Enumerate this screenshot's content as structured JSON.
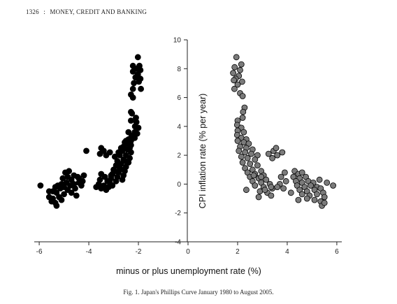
{
  "header": {
    "page_number": "1326",
    "separator": ":",
    "journal_title": "MONEY, CREDIT AND BANKING"
  },
  "caption": {
    "label": "Fig. 1.",
    "text": "Japan's Phillips Curve January 1980 to August 2005."
  },
  "chart_data": {
    "type": "scatter",
    "xlabel": "minus or plus unemployment rate (%)",
    "ylabel": "CPI inflation rate (% per year)",
    "xlim": [
      -6.2,
      6.2
    ],
    "ylim": [
      -4,
      10
    ],
    "x_ticks": [
      -6,
      -4,
      -2,
      0,
      2,
      4,
      6
    ],
    "x_tick_labels": [
      "-6",
      "-4",
      "-2",
      "0",
      "2",
      "4",
      "6"
    ],
    "y_ticks": [
      -4,
      -2,
      0,
      2,
      4,
      6,
      8,
      10
    ],
    "y_tick_labels": [
      "-4",
      "-2",
      "0",
      "2",
      "4",
      "6",
      "8",
      "10"
    ],
    "grid": false,
    "legend": "none",
    "series": [
      {
        "marker_color": "#000000",
        "points": [
          [
            -2.02,
            8.8
          ],
          [
            -1.96,
            8.2
          ],
          [
            -2.08,
            8.0
          ],
          [
            -1.92,
            7.9
          ],
          [
            -2.02,
            7.6
          ],
          [
            -1.92,
            7.3
          ],
          [
            -1.98,
            7.1
          ],
          [
            -2.22,
            8.2
          ],
          [
            -2.22,
            7.8
          ],
          [
            -2.12,
            7.4
          ],
          [
            -2.18,
            7.0
          ],
          [
            -2.22,
            6.6
          ],
          [
            -1.9,
            6.6
          ],
          [
            -2.3,
            6.2
          ],
          [
            -2.22,
            6.0
          ],
          [
            -2.3,
            5.0
          ],
          [
            -2.26,
            4.9
          ],
          [
            -2.1,
            4.6
          ],
          [
            -2.3,
            4.4
          ],
          [
            -2.08,
            4.3
          ],
          [
            -2.14,
            4.0
          ],
          [
            -2.0,
            3.9
          ],
          [
            -2.15,
            3.6
          ],
          [
            -2.05,
            3.5
          ],
          [
            -2.28,
            3.3
          ],
          [
            -2.15,
            3.2
          ],
          [
            -2.4,
            3.1
          ],
          [
            -2.5,
            3.0
          ],
          [
            -2.3,
            3.0
          ],
          [
            -2.45,
            2.8
          ],
          [
            -2.6,
            2.6
          ],
          [
            -2.3,
            2.7
          ],
          [
            -2.45,
            2.4
          ],
          [
            -2.65,
            2.3
          ],
          [
            -2.3,
            2.2
          ],
          [
            -2.5,
            2.0
          ],
          [
            -2.75,
            2.0
          ],
          [
            -2.35,
            1.8
          ],
          [
            -2.6,
            1.7
          ],
          [
            -2.85,
            1.6
          ],
          [
            -2.4,
            1.5
          ],
          [
            -2.7,
            1.4
          ],
          [
            -2.9,
            1.3
          ],
          [
            -2.5,
            1.2
          ],
          [
            -2.75,
            1.1
          ],
          [
            -3.0,
            1.0
          ],
          [
            -2.55,
            0.9
          ],
          [
            -2.8,
            0.8
          ],
          [
            -3.05,
            0.7
          ],
          [
            -2.6,
            0.6
          ],
          [
            -2.85,
            0.5
          ],
          [
            -3.1,
            0.4
          ],
          [
            -2.65,
            0.3
          ],
          [
            -2.9,
            0.2
          ],
          [
            -3.15,
            0.1
          ],
          [
            -2.7,
            2.5
          ],
          [
            -2.55,
            2.9
          ],
          [
            -2.8,
            2.2
          ],
          [
            -2.95,
            1.9
          ],
          [
            -2.55,
            1.6
          ],
          [
            -2.35,
            2.5
          ],
          [
            -2.2,
            3.4
          ],
          [
            -2.4,
            3.6
          ],
          [
            -2.35,
            2.9
          ],
          [
            -2.6,
            1.0
          ],
          [
            -2.8,
            1.25
          ],
          [
            -2.95,
            0.9
          ],
          [
            -3.5,
            2.5
          ],
          [
            -3.4,
            2.3
          ],
          [
            -3.55,
            2.1
          ],
          [
            -3.3,
            2.0
          ],
          [
            -3.15,
            2.2
          ],
          [
            -4.1,
            2.3
          ],
          [
            -3.5,
            0.7
          ],
          [
            -3.35,
            0.5
          ],
          [
            -3.55,
            0.3
          ],
          [
            -3.25,
            0.2
          ],
          [
            -3.6,
            0.0
          ],
          [
            -3.4,
            -0.1
          ],
          [
            -3.2,
            -0.2
          ],
          [
            -3.7,
            -0.2
          ],
          [
            -3.3,
            -0.4
          ],
          [
            -3.5,
            -0.3
          ],
          [
            -3.05,
            -0.1
          ],
          [
            -3.1,
            0.6
          ],
          [
            -4.8,
            0.9
          ],
          [
            -4.95,
            0.8
          ],
          [
            -4.6,
            0.6
          ],
          [
            -4.85,
            0.5
          ],
          [
            -5.05,
            0.4
          ],
          [
            -4.7,
            0.3
          ],
          [
            -4.4,
            0.4
          ],
          [
            -4.2,
            0.6
          ],
          [
            -4.9,
            0.1
          ],
          [
            -5.1,
            0.0
          ],
          [
            -4.6,
            0.0
          ],
          [
            -4.4,
            0.1
          ],
          [
            -4.25,
            0.2
          ],
          [
            -4.75,
            -0.1
          ],
          [
            -5.0,
            -0.2
          ],
          [
            -5.25,
            -0.1
          ],
          [
            -4.55,
            -0.3
          ],
          [
            -4.85,
            -0.4
          ],
          [
            -5.15,
            -0.3
          ],
          [
            -5.35,
            -0.2
          ],
          [
            -4.7,
            -0.6
          ],
          [
            -5.0,
            -0.7
          ],
          [
            -5.3,
            -0.6
          ],
          [
            -5.45,
            -0.5
          ],
          [
            -5.2,
            -0.9
          ],
          [
            -5.45,
            -1.0
          ],
          [
            -5.35,
            -1.3
          ],
          [
            -5.3,
            -1.5
          ],
          [
            -5.5,
            -1.2
          ],
          [
            -5.1,
            -1.1
          ],
          [
            -5.95,
            -0.1
          ],
          [
            -5.6,
            -0.5
          ],
          [
            -4.5,
            -0.8
          ],
          [
            -5.6,
            -0.9
          ],
          [
            -4.3,
            -0.1
          ],
          [
            -4.45,
            0.5
          ]
        ]
      },
      {
        "marker_color": "#7b7b7b",
        "points": [
          [
            1.95,
            8.8
          ],
          [
            2.15,
            8.3
          ],
          [
            1.88,
            8.1
          ],
          [
            2.1,
            7.9
          ],
          [
            1.82,
            7.7
          ],
          [
            2.05,
            7.5
          ],
          [
            1.92,
            7.3
          ],
          [
            2.18,
            7.1
          ],
          [
            1.85,
            7.2
          ],
          [
            2.0,
            6.9
          ],
          [
            1.87,
            6.6
          ],
          [
            2.1,
            6.3
          ],
          [
            2.2,
            6.1
          ],
          [
            2.28,
            5.3
          ],
          [
            2.22,
            5.0
          ],
          [
            2.2,
            4.6
          ],
          [
            2.0,
            4.4
          ],
          [
            1.98,
            4.1
          ],
          [
            2.15,
            3.9
          ],
          [
            2.0,
            3.7
          ],
          [
            2.25,
            3.6
          ],
          [
            1.98,
            3.4
          ],
          [
            2.15,
            3.2
          ],
          [
            2.35,
            3.1
          ],
          [
            2.0,
            3.0
          ],
          [
            2.25,
            2.9
          ],
          [
            2.45,
            2.8
          ],
          [
            2.1,
            2.6
          ],
          [
            2.35,
            2.5
          ],
          [
            2.6,
            2.4
          ],
          [
            2.05,
            2.3
          ],
          [
            2.3,
            2.2
          ],
          [
            2.55,
            2.1
          ],
          [
            2.8,
            2.0
          ],
          [
            2.15,
            1.9
          ],
          [
            2.4,
            1.8
          ],
          [
            2.7,
            1.7
          ],
          [
            2.2,
            1.5
          ],
          [
            2.5,
            1.4
          ],
          [
            2.8,
            1.3
          ],
          [
            2.3,
            1.1
          ],
          [
            2.6,
            1.0
          ],
          [
            2.95,
            0.9
          ],
          [
            2.4,
            0.8
          ],
          [
            2.7,
            0.7
          ],
          [
            3.05,
            0.6
          ],
          [
            2.5,
            0.5
          ],
          [
            2.85,
            0.4
          ],
          [
            3.15,
            0.3
          ],
          [
            2.6,
            0.2
          ],
          [
            2.95,
            0.1
          ],
          [
            3.3,
            0.0
          ],
          [
            2.7,
            -0.1
          ],
          [
            3.05,
            -0.2
          ],
          [
            3.4,
            -0.3
          ],
          [
            2.9,
            -0.5
          ],
          [
            3.2,
            -0.6
          ],
          [
            2.85,
            -0.9
          ],
          [
            3.35,
            -0.8
          ],
          [
            3.1,
            -0.4
          ],
          [
            2.65,
            0.6
          ],
          [
            3.25,
            2.1
          ],
          [
            3.45,
            2.3
          ],
          [
            3.6,
            2.0
          ],
          [
            3.4,
            1.8
          ],
          [
            3.8,
            2.2
          ],
          [
            3.55,
            2.5
          ],
          [
            3.9,
            0.8
          ],
          [
            3.75,
            0.5
          ],
          [
            3.95,
            0.2
          ],
          [
            3.7,
            0.0
          ],
          [
            3.85,
            -0.3
          ],
          [
            3.6,
            -0.2
          ],
          [
            4.3,
            0.9
          ],
          [
            4.45,
            0.7
          ],
          [
            4.6,
            0.8
          ],
          [
            4.25,
            0.5
          ],
          [
            4.5,
            0.4
          ],
          [
            4.75,
            0.5
          ],
          [
            4.35,
            0.2
          ],
          [
            4.6,
            0.1
          ],
          [
            4.85,
            0.2
          ],
          [
            5.05,
            0.1
          ],
          [
            4.4,
            -0.1
          ],
          [
            4.7,
            -0.2
          ],
          [
            4.95,
            -0.1
          ],
          [
            5.2,
            -0.2
          ],
          [
            4.5,
            -0.4
          ],
          [
            4.8,
            -0.5
          ],
          [
            5.1,
            -0.4
          ],
          [
            5.35,
            -0.3
          ],
          [
            4.6,
            -0.7
          ],
          [
            4.9,
            -0.8
          ],
          [
            5.2,
            -0.7
          ],
          [
            5.45,
            -0.6
          ],
          [
            4.8,
            -1.0
          ],
          [
            5.1,
            -1.1
          ],
          [
            5.35,
            -1.2
          ],
          [
            5.5,
            -0.9
          ],
          [
            5.4,
            -1.5
          ],
          [
            5.5,
            -1.3
          ],
          [
            5.85,
            -0.1
          ],
          [
            4.45,
            -1.1
          ],
          [
            5.6,
            0.1
          ],
          [
            5.3,
            0.3
          ],
          [
            4.15,
            -0.6
          ],
          [
            3.35,
            -0.2
          ],
          [
            2.35,
            -0.4
          ],
          [
            2.95,
            0.5
          ]
        ]
      }
    ]
  }
}
